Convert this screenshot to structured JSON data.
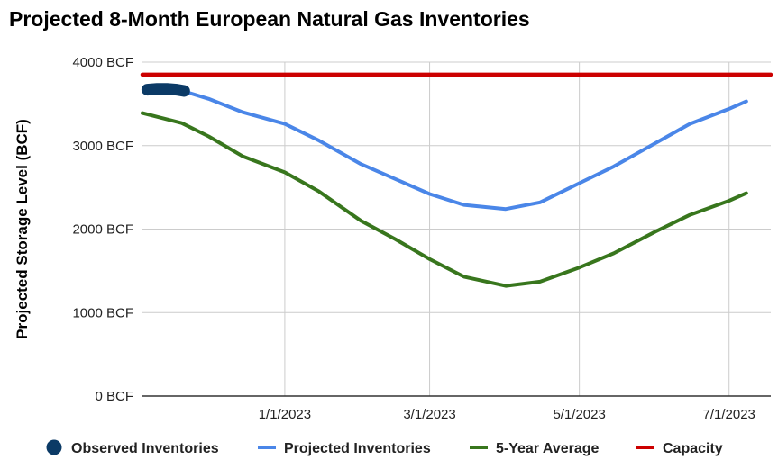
{
  "chart_data": {
    "type": "line",
    "title": "Projected 8-Month European Natural Gas Inventories",
    "ylabel": "Projected Storage Level (BCF)",
    "xlabel": "",
    "ylim": [
      0,
      4000
    ],
    "y_ticks": [
      {
        "value": 0,
        "label": "0 BCF"
      },
      {
        "value": 1000,
        "label": "1000 BCF"
      },
      {
        "value": 2000,
        "label": "2000 BCF"
      },
      {
        "value": 3000,
        "label": "3000 BCF"
      },
      {
        "value": 4000,
        "label": "4000 BCF"
      }
    ],
    "x_ticks": [
      {
        "date": "2023-01-01",
        "label": "1/1/2023"
      },
      {
        "date": "2023-03-01",
        "label": "3/1/2023"
      },
      {
        "date": "2023-05-01",
        "label": "5/1/2023"
      },
      {
        "date": "2023-07-01",
        "label": "7/1/2023"
      }
    ],
    "xlim": [
      "2022-11-04",
      "2023-07-18"
    ],
    "grid": true,
    "legend": "bottom",
    "series": [
      {
        "name": "Observed Inventories",
        "color": "#0b3a66",
        "style": "thick-line",
        "points": [
          {
            "x": "2022-11-06",
            "y": 3670
          },
          {
            "x": "2022-11-10",
            "y": 3680
          },
          {
            "x": "2022-11-14",
            "y": 3680
          },
          {
            "x": "2022-11-18",
            "y": 3670
          },
          {
            "x": "2022-11-21",
            "y": 3655
          }
        ]
      },
      {
        "name": "Projected Inventories",
        "color": "#4a86e8",
        "style": "line",
        "points": [
          {
            "x": "2022-11-21",
            "y": 3650
          },
          {
            "x": "2022-12-01",
            "y": 3560
          },
          {
            "x": "2022-12-15",
            "y": 3400
          },
          {
            "x": "2023-01-01",
            "y": 3260
          },
          {
            "x": "2023-01-15",
            "y": 3060
          },
          {
            "x": "2023-02-01",
            "y": 2780
          },
          {
            "x": "2023-02-15",
            "y": 2600
          },
          {
            "x": "2023-03-01",
            "y": 2420
          },
          {
            "x": "2023-03-15",
            "y": 2290
          },
          {
            "x": "2023-04-01",
            "y": 2240
          },
          {
            "x": "2023-04-15",
            "y": 2320
          },
          {
            "x": "2023-05-01",
            "y": 2550
          },
          {
            "x": "2023-05-15",
            "y": 2750
          },
          {
            "x": "2023-06-01",
            "y": 3030
          },
          {
            "x": "2023-06-15",
            "y": 3260
          },
          {
            "x": "2023-07-01",
            "y": 3440
          },
          {
            "x": "2023-07-08",
            "y": 3530
          }
        ]
      },
      {
        "name": "5-Year Average",
        "color": "#38761d",
        "style": "line",
        "points": [
          {
            "x": "2022-11-04",
            "y": 3390
          },
          {
            "x": "2022-11-20",
            "y": 3270
          },
          {
            "x": "2022-12-01",
            "y": 3110
          },
          {
            "x": "2022-12-15",
            "y": 2870
          },
          {
            "x": "2023-01-01",
            "y": 2680
          },
          {
            "x": "2023-01-15",
            "y": 2450
          },
          {
            "x": "2023-02-01",
            "y": 2100
          },
          {
            "x": "2023-02-15",
            "y": 1880
          },
          {
            "x": "2023-03-01",
            "y": 1640
          },
          {
            "x": "2023-03-15",
            "y": 1430
          },
          {
            "x": "2023-04-01",
            "y": 1320
          },
          {
            "x": "2023-04-15",
            "y": 1370
          },
          {
            "x": "2023-05-01",
            "y": 1540
          },
          {
            "x": "2023-05-15",
            "y": 1710
          },
          {
            "x": "2023-06-01",
            "y": 1970
          },
          {
            "x": "2023-06-15",
            "y": 2170
          },
          {
            "x": "2023-07-01",
            "y": 2340
          },
          {
            "x": "2023-07-08",
            "y": 2430
          }
        ]
      },
      {
        "name": "Capacity",
        "color": "#cc0000",
        "style": "line",
        "points": [
          {
            "x": "2022-11-04",
            "y": 3850
          },
          {
            "x": "2023-07-18",
            "y": 3850
          }
        ]
      }
    ]
  }
}
